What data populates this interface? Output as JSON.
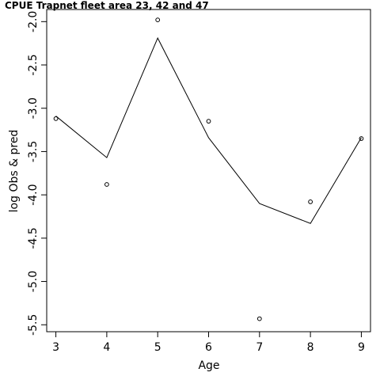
{
  "chart_data": {
    "type": "line",
    "title": "CPUE Trapnet fleet area 23, 42 and 47",
    "xlabel": "Age",
    "ylabel": "log Obs & pred",
    "xlim": [
      2.82,
      9.18
    ],
    "ylim": [
      -5.58,
      -1.86
    ],
    "x_ticks": [
      "3",
      "4",
      "5",
      "6",
      "7",
      "8",
      "9"
    ],
    "y_ticks": [
      "-2.0",
      "-2.5",
      "-3.0",
      "-3.5",
      "-4.0",
      "-4.5",
      "-5.0",
      "-5.5"
    ],
    "series": [
      {
        "style": "points",
        "x": [
          3,
          4,
          5,
          6,
          7,
          8,
          9
        ],
        "y": [
          -3.12,
          -3.88,
          -1.98,
          -3.15,
          -5.43,
          -4.08,
          -3.35
        ]
      },
      {
        "style": "line",
        "x": [
          3,
          4,
          5,
          6,
          7,
          8,
          9
        ],
        "y": [
          -3.09,
          -3.57,
          -2.19,
          -3.34,
          -4.1,
          -4.33,
          -3.34
        ]
      }
    ],
    "grid": false,
    "legend": "none"
  }
}
